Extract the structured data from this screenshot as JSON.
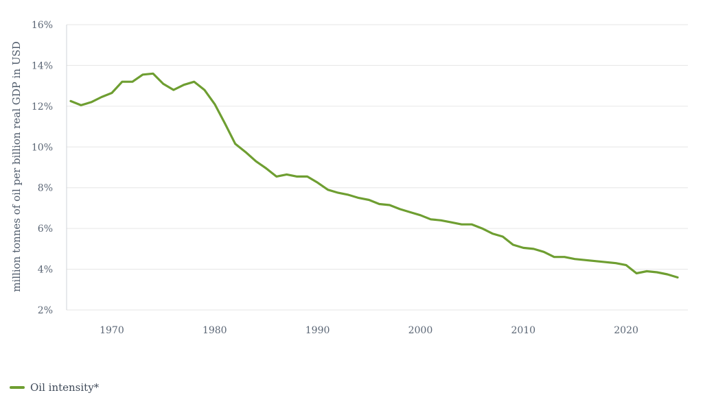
{
  "chart_data": {
    "type": "line",
    "title": "",
    "xlabel": "",
    "ylabel": "million tonnes of oil per billion real GDP in USD",
    "xlim": [
      1965.6,
      2026
    ],
    "ylim": [
      2,
      16
    ],
    "y_ticks": [
      2,
      4,
      6,
      8,
      10,
      12,
      14,
      16
    ],
    "y_tick_labels": [
      "2%",
      "4%",
      "6%",
      "8%",
      "10%",
      "12%",
      "14%",
      "16%"
    ],
    "x_ticks": [
      1970,
      1980,
      1990,
      2000,
      2010,
      2020
    ],
    "x_tick_labels": [
      "1970",
      "1980",
      "1990",
      "2000",
      "2010",
      "2020"
    ],
    "grid": "horizontal",
    "legend_position": "bottom-left",
    "colors": {
      "series": "#6e9e31",
      "grid": "#e6e6e6",
      "text": "#5b6675"
    },
    "series": [
      {
        "name": "Oil intensity*",
        "x": [
          1966,
          1967,
          1968,
          1969,
          1970,
          1971,
          1972,
          1973,
          1974,
          1975,
          1976,
          1977,
          1978,
          1979,
          1980,
          1981,
          1982,
          1983,
          1984,
          1985,
          1986,
          1987,
          1988,
          1989,
          1990,
          1991,
          1992,
          1993,
          1994,
          1995,
          1996,
          1997,
          1998,
          1999,
          2000,
          2001,
          2002,
          2003,
          2004,
          2005,
          2006,
          2007,
          2008,
          2009,
          2010,
          2011,
          2012,
          2013,
          2014,
          2015,
          2016,
          2017,
          2018,
          2019,
          2020,
          2021,
          2022,
          2023,
          2024,
          2025
        ],
        "values": [
          12.25,
          12.05,
          12.2,
          12.45,
          12.65,
          13.2,
          13.2,
          13.55,
          13.6,
          13.1,
          12.8,
          13.05,
          13.2,
          12.8,
          12.1,
          11.15,
          10.15,
          9.75,
          9.3,
          8.95,
          8.55,
          8.65,
          8.55,
          8.55,
          8.25,
          7.9,
          7.75,
          7.65,
          7.5,
          7.4,
          7.2,
          7.15,
          6.95,
          6.8,
          6.65,
          6.45,
          6.4,
          6.3,
          6.2,
          6.2,
          6.0,
          5.75,
          5.6,
          5.2,
          5.05,
          5.0,
          4.85,
          4.6,
          4.6,
          4.5,
          4.45,
          4.4,
          4.35,
          4.3,
          4.2,
          3.8,
          3.9,
          3.85,
          3.75,
          3.6
        ]
      }
    ]
  }
}
